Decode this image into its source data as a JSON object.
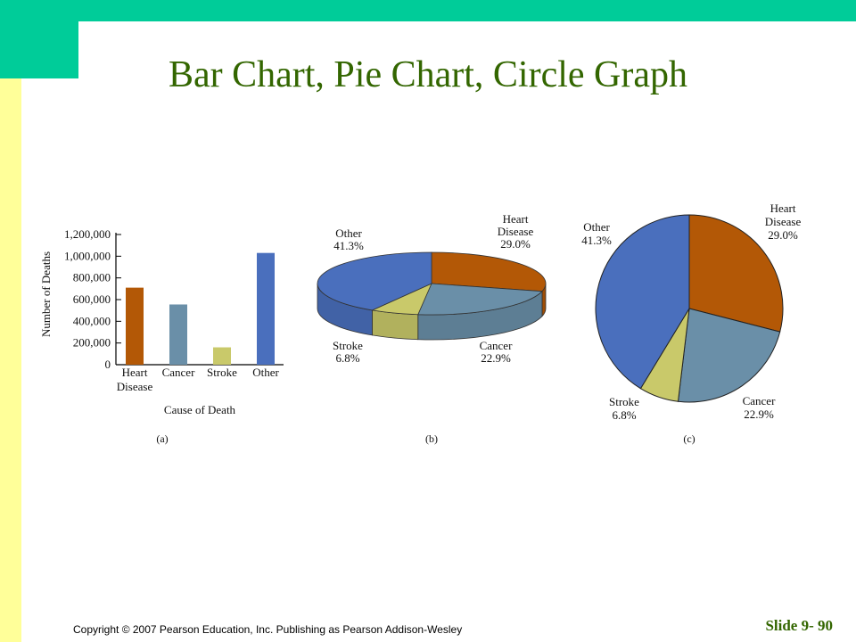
{
  "slide": {
    "title": "Bar Chart, Pie Chart, Circle Graph",
    "copyright": "Copyright © 2007 Pearson Education, Inc. Publishing as Pearson Addison-Wesley",
    "slide_number": "Slide 9- 90"
  },
  "colors": {
    "heart": "#b35806",
    "cancer": "#6a8fa8",
    "stroke": "#c9c96a",
    "other": "#4a6fbd",
    "accent_band": "#00cc99",
    "side_strip": "#ffff99",
    "title": "#336600"
  },
  "chart_data": [
    {
      "type": "bar",
      "panel_label": "(a)",
      "categories": [
        "Heart Disease",
        "Cancer",
        "Stroke",
        "Other"
      ],
      "category_lines": [
        [
          "Heart",
          "Disease"
        ],
        [
          "Cancer"
        ],
        [
          "Stroke"
        ],
        [
          "Other"
        ]
      ],
      "values": [
        710000,
        555000,
        160000,
        1030000
      ],
      "xlabel": "Cause of Death",
      "ylabel": "Number of Deaths",
      "ylim": [
        0,
        1200000
      ],
      "yticks": [
        0,
        200000,
        400000,
        600000,
        800000,
        1000000,
        1200000
      ],
      "ytick_labels": [
        "0",
        "200,000",
        "400,000",
        "600,000",
        "800,000",
        "1,000,000",
        "1,200,000"
      ],
      "grid": false
    },
    {
      "type": "pie",
      "style": "3d",
      "panel_label": "(b)",
      "slices": [
        {
          "name": "Heart Disease",
          "value": 29.0,
          "label_lines": [
            "Heart",
            "Disease",
            "29.0%"
          ]
        },
        {
          "name": "Cancer",
          "value": 22.9,
          "label_lines": [
            "Cancer",
            "22.9%"
          ]
        },
        {
          "name": "Stroke",
          "value": 6.8,
          "label_lines": [
            "Stroke",
            "6.8%"
          ]
        },
        {
          "name": "Other",
          "value": 41.3,
          "label_lines": [
            "Other",
            "41.3%"
          ]
        }
      ]
    },
    {
      "type": "pie",
      "style": "flat",
      "panel_label": "(c)",
      "slices": [
        {
          "name": "Heart Disease",
          "value": 29.0,
          "label_lines": [
            "Heart",
            "Disease",
            "29.0%"
          ]
        },
        {
          "name": "Cancer",
          "value": 22.9,
          "label_lines": [
            "Cancer",
            "22.9%"
          ]
        },
        {
          "name": "Stroke",
          "value": 6.8,
          "label_lines": [
            "Stroke",
            "6.8%"
          ]
        },
        {
          "name": "Other",
          "value": 41.3,
          "label_lines": [
            "Other",
            "41.3%"
          ]
        }
      ]
    }
  ]
}
